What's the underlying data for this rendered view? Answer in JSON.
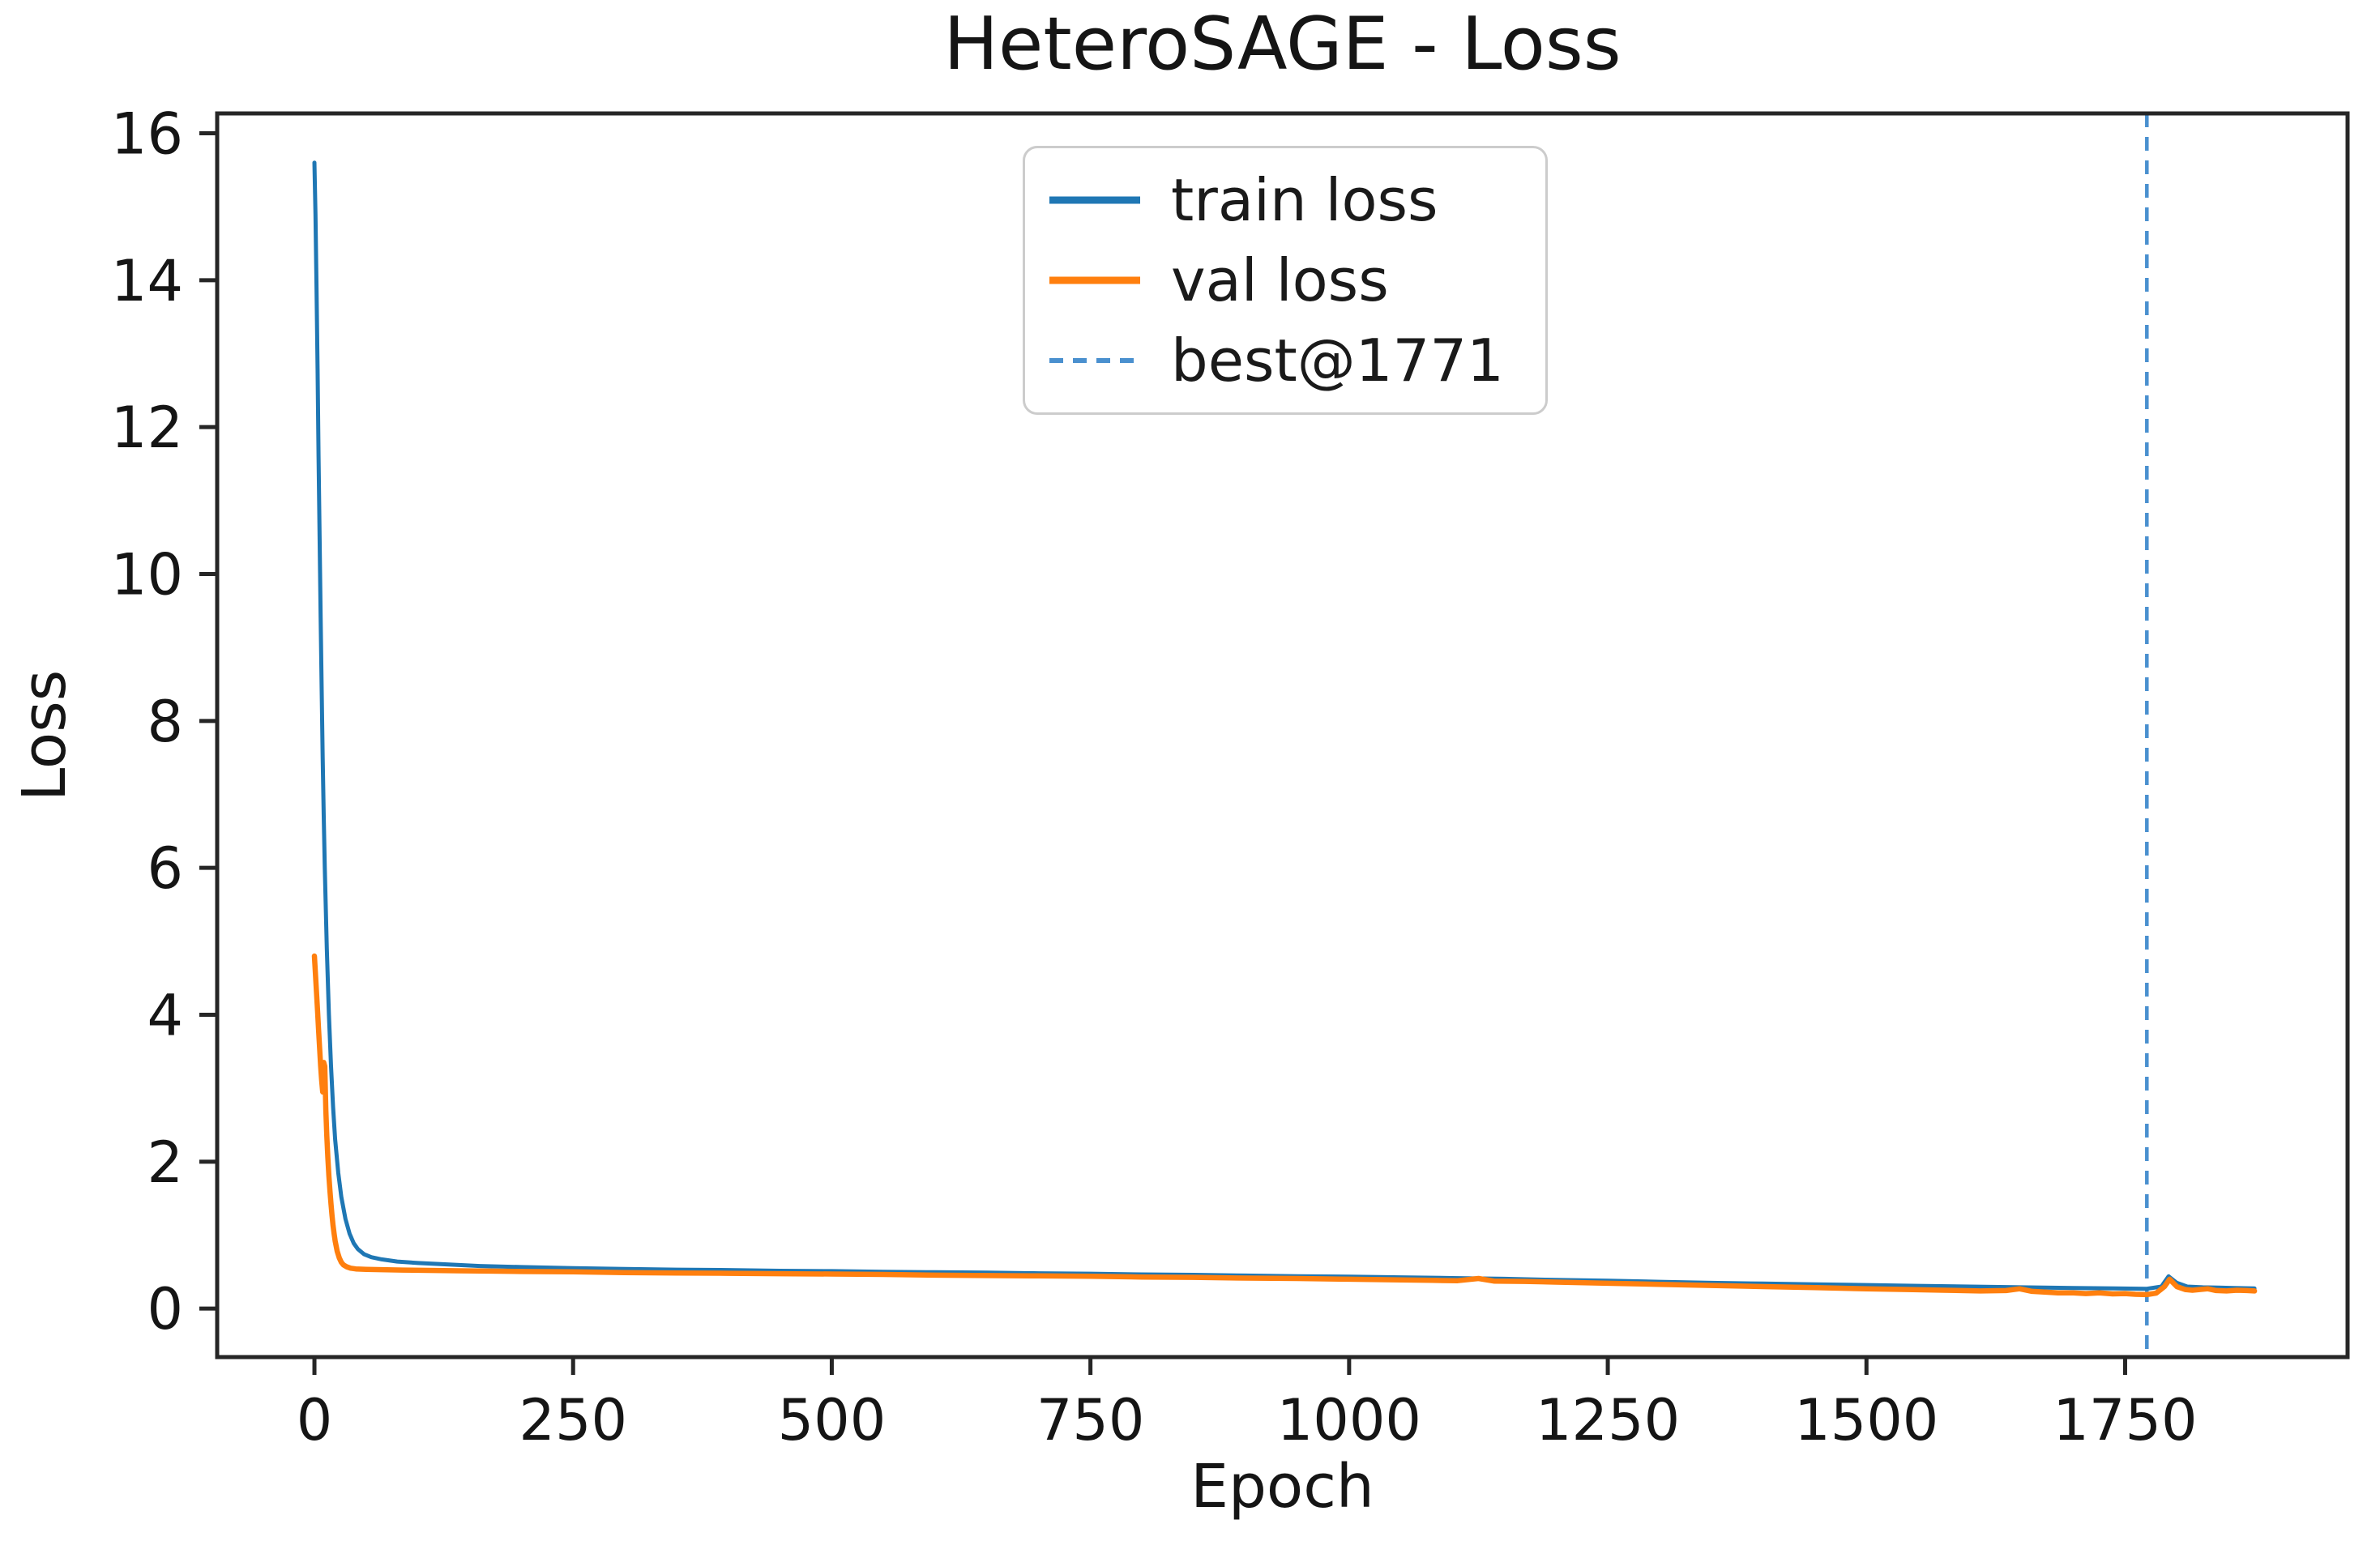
{
  "chart_data": {
    "type": "line",
    "title": "HeteroSAGE - Loss",
    "xlabel": "Epoch",
    "ylabel": "Loss",
    "xlim": [
      -94,
      1965
    ],
    "ylim": [
      -0.66,
      16.27
    ],
    "x_ticks": [
      0,
      250,
      500,
      750,
      1000,
      1250,
      1500,
      1750
    ],
    "y_ticks": [
      0,
      2,
      4,
      6,
      8,
      10,
      12,
      14,
      16
    ],
    "grid": false,
    "legend": {
      "position": "upper center",
      "items": [
        {
          "label": "train loss",
          "style": "solid"
        },
        {
          "label": "val loss",
          "style": "solid"
        },
        {
          "label": "best@1771",
          "style": "dashed"
        }
      ]
    },
    "vline": {
      "x": 1771,
      "label": "best@1771",
      "color": "#4a90cf",
      "style": "dashed"
    },
    "series": [
      {
        "name": "train loss",
        "color": "#1f77b4",
        "points": [
          [
            0,
            15.6
          ],
          [
            1,
            14.9
          ],
          [
            2,
            13.9
          ],
          [
            3,
            12.8
          ],
          [
            4,
            11.6
          ],
          [
            5,
            10.5
          ],
          [
            6,
            9.4
          ],
          [
            7,
            8.4
          ],
          [
            8,
            7.5
          ],
          [
            9,
            6.7
          ],
          [
            10,
            6.0
          ],
          [
            12,
            4.9
          ],
          [
            14,
            4.0
          ],
          [
            16,
            3.3
          ],
          [
            18,
            2.75
          ],
          [
            20,
            2.3
          ],
          [
            23,
            1.85
          ],
          [
            26,
            1.52
          ],
          [
            30,
            1.22
          ],
          [
            34,
            1.02
          ],
          [
            38,
            0.89
          ],
          [
            42,
            0.81
          ],
          [
            48,
            0.74
          ],
          [
            55,
            0.7
          ],
          [
            65,
            0.67
          ],
          [
            80,
            0.64
          ],
          [
            100,
            0.62
          ],
          [
            130,
            0.6
          ],
          [
            160,
            0.58
          ],
          [
            200,
            0.565
          ],
          [
            250,
            0.55
          ],
          [
            300,
            0.54
          ],
          [
            350,
            0.53
          ],
          [
            400,
            0.525
          ],
          [
            450,
            0.515
          ],
          [
            500,
            0.51
          ],
          [
            550,
            0.5
          ],
          [
            600,
            0.495
          ],
          [
            650,
            0.49
          ],
          [
            700,
            0.48
          ],
          [
            750,
            0.475
          ],
          [
            800,
            0.465
          ],
          [
            850,
            0.46
          ],
          [
            900,
            0.45
          ],
          [
            950,
            0.44
          ],
          [
            1000,
            0.435
          ],
          [
            1050,
            0.425
          ],
          [
            1100,
            0.415
          ],
          [
            1150,
            0.405
          ],
          [
            1200,
            0.39
          ],
          [
            1250,
            0.38
          ],
          [
            1300,
            0.365
          ],
          [
            1350,
            0.35
          ],
          [
            1400,
            0.34
          ],
          [
            1450,
            0.33
          ],
          [
            1500,
            0.32
          ],
          [
            1550,
            0.31
          ],
          [
            1600,
            0.3
          ],
          [
            1650,
            0.29
          ],
          [
            1700,
            0.28
          ],
          [
            1740,
            0.275
          ],
          [
            1771,
            0.27
          ],
          [
            1785,
            0.3
          ],
          [
            1792,
            0.44
          ],
          [
            1800,
            0.35
          ],
          [
            1810,
            0.3
          ],
          [
            1825,
            0.29
          ],
          [
            1840,
            0.285
          ],
          [
            1855,
            0.28
          ],
          [
            1875,
            0.275
          ]
        ]
      },
      {
        "name": "val loss",
        "color": "#ff7f0e",
        "points": [
          [
            0,
            4.8
          ],
          [
            1,
            4.55
          ],
          [
            2,
            4.3
          ],
          [
            3,
            4.05
          ],
          [
            4,
            3.8
          ],
          [
            5,
            3.55
          ],
          [
            6,
            3.3
          ],
          [
            7,
            3.1
          ],
          [
            8,
            2.95
          ],
          [
            9,
            3.35
          ],
          [
            10,
            3.3
          ],
          [
            11,
            2.7
          ],
          [
            12,
            2.35
          ],
          [
            13,
            2.05
          ],
          [
            14,
            1.8
          ],
          [
            15,
            1.6
          ],
          [
            16,
            1.42
          ],
          [
            17,
            1.27
          ],
          [
            18,
            1.13
          ],
          [
            19,
            1.02
          ],
          [
            20,
            0.92
          ],
          [
            22,
            0.78
          ],
          [
            24,
            0.69
          ],
          [
            26,
            0.63
          ],
          [
            28,
            0.595
          ],
          [
            31,
            0.57
          ],
          [
            35,
            0.55
          ],
          [
            40,
            0.54
          ],
          [
            50,
            0.535
          ],
          [
            65,
            0.53
          ],
          [
            85,
            0.525
          ],
          [
            110,
            0.52
          ],
          [
            140,
            0.515
          ],
          [
            170,
            0.51
          ],
          [
            200,
            0.505
          ],
          [
            250,
            0.5
          ],
          [
            300,
            0.49
          ],
          [
            350,
            0.485
          ],
          [
            400,
            0.48
          ],
          [
            450,
            0.475
          ],
          [
            500,
            0.47
          ],
          [
            550,
            0.465
          ],
          [
            600,
            0.455
          ],
          [
            650,
            0.45
          ],
          [
            700,
            0.445
          ],
          [
            750,
            0.44
          ],
          [
            800,
            0.43
          ],
          [
            850,
            0.425
          ],
          [
            900,
            0.415
          ],
          [
            950,
            0.41
          ],
          [
            1000,
            0.4
          ],
          [
            1050,
            0.39
          ],
          [
            1080,
            0.385
          ],
          [
            1105,
            0.38
          ],
          [
            1125,
            0.41
          ],
          [
            1140,
            0.375
          ],
          [
            1170,
            0.37
          ],
          [
            1200,
            0.36
          ],
          [
            1250,
            0.345
          ],
          [
            1300,
            0.33
          ],
          [
            1350,
            0.315
          ],
          [
            1400,
            0.3
          ],
          [
            1450,
            0.285
          ],
          [
            1500,
            0.27
          ],
          [
            1540,
            0.26
          ],
          [
            1575,
            0.25
          ],
          [
            1610,
            0.24
          ],
          [
            1635,
            0.245
          ],
          [
            1648,
            0.27
          ],
          [
            1660,
            0.235
          ],
          [
            1672,
            0.225
          ],
          [
            1685,
            0.215
          ],
          [
            1700,
            0.215
          ],
          [
            1712,
            0.205
          ],
          [
            1725,
            0.215
          ],
          [
            1738,
            0.2
          ],
          [
            1750,
            0.205
          ],
          [
            1760,
            0.195
          ],
          [
            1771,
            0.19
          ],
          [
            1780,
            0.21
          ],
          [
            1788,
            0.3
          ],
          [
            1793,
            0.4
          ],
          [
            1800,
            0.3
          ],
          [
            1808,
            0.26
          ],
          [
            1815,
            0.25
          ],
          [
            1822,
            0.26
          ],
          [
            1830,
            0.27
          ],
          [
            1838,
            0.245
          ],
          [
            1848,
            0.24
          ],
          [
            1858,
            0.25
          ],
          [
            1868,
            0.245
          ],
          [
            1875,
            0.24
          ]
        ]
      }
    ],
    "colors": {
      "spine": "#262626",
      "text": "#151515",
      "legend_border": "#cccccc"
    }
  }
}
